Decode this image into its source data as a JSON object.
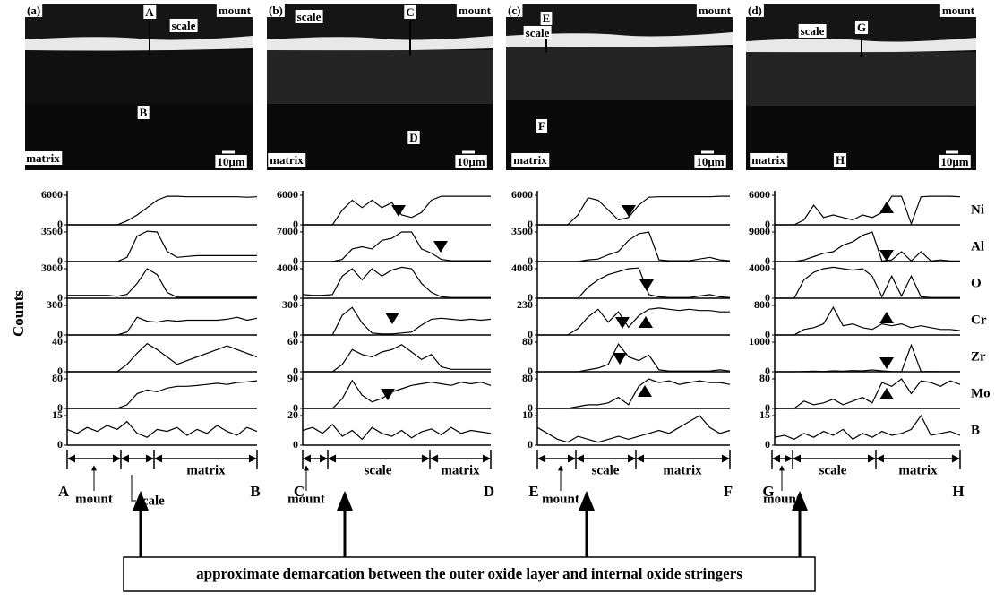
{
  "y_axis_label": "Counts",
  "elements": [
    "Ni",
    "Al",
    "O",
    "Cr",
    "Zr",
    "Mo",
    "B"
  ],
  "caption": "approximate demarcation between the outer oxide layer and internal oxide stringers",
  "panels": [
    {
      "label": "(a)",
      "micrograph": {
        "start": "A",
        "end": "B",
        "scale": "scale",
        "mount": "mount",
        "matrix": "matrix",
        "scale_bar": "10μm"
      },
      "line_scan": {
        "start": "A",
        "end": "B",
        "mount": "mount",
        "scale": "scale",
        "matrix": "matrix"
      },
      "profile": {
        "type": "line",
        "rows": [
          {
            "ylim": [
              0,
              6000
            ],
            "yticks": [
              0,
              6000
            ],
            "values": [
              0,
              0,
              0,
              0,
              0,
              0,
              800,
              2000,
              3500,
              5000,
              5800,
              5800,
              5700,
              5700,
              5700,
              5700,
              5700,
              5700,
              5600,
              5700
            ]
          },
          {
            "ylim": [
              0,
              3500
            ],
            "yticks": [
              0,
              3500
            ],
            "values": [
              0,
              0,
              0,
              0,
              0,
              0,
              500,
              3000,
              3600,
              3500,
              1200,
              500,
              600,
              700,
              700,
              700,
              700,
              700,
              700,
              700
            ]
          },
          {
            "ylim": [
              0,
              3000
            ],
            "yticks": [
              0,
              3000
            ],
            "values": [
              300,
              300,
              300,
              300,
              300,
              200,
              400,
              1500,
              3000,
              2400,
              600,
              100,
              100,
              100,
              100,
              100,
              100,
              100,
              100,
              100
            ]
          },
          {
            "ylim": [
              0,
              300
            ],
            "yticks": [
              0,
              300
            ],
            "values": [
              0,
              0,
              0,
              0,
              0,
              0,
              30,
              180,
              140,
              130,
              150,
              140,
              150,
              150,
              150,
              150,
              160,
              180,
              150,
              170
            ]
          },
          {
            "ylim": [
              0,
              40
            ],
            "yticks": [
              0,
              40
            ],
            "values": [
              0,
              0,
              0,
              0,
              0,
              0,
              10,
              25,
              38,
              30,
              20,
              10,
              15,
              20,
              25,
              30,
              35,
              30,
              25,
              20
            ]
          },
          {
            "ylim": [
              0,
              80
            ],
            "yticks": [
              0,
              80
            ],
            "values": [
              0,
              0,
              0,
              0,
              0,
              0,
              10,
              40,
              50,
              45,
              55,
              60,
              60,
              62,
              65,
              68,
              65,
              70,
              72,
              75
            ]
          },
          {
            "ylim": [
              0,
              15
            ],
            "yticks": [
              0,
              15
            ],
            "values": [
              8,
              6,
              9,
              7,
              10,
              8,
              12,
              6,
              4,
              8,
              7,
              9,
              5,
              8,
              6,
              10,
              7,
              5,
              9,
              7
            ]
          }
        ]
      }
    },
    {
      "label": "(b)",
      "micrograph": {
        "start": "C",
        "end": "D",
        "scale": "scale",
        "mount": "mount",
        "matrix": "matrix",
        "scale_bar": "10μm"
      },
      "line_scan": {
        "start": "C",
        "end": "D",
        "mount": "mount",
        "scale": "scale",
        "matrix": "matrix"
      },
      "profile": {
        "type": "line",
        "rows": [
          {
            "ylim": [
              0,
              6000
            ],
            "yticks": [
              0,
              6000
            ],
            "values": [
              0,
              0,
              0,
              0,
              3000,
              5000,
              3500,
              5000,
              3500,
              4500,
              2000,
              1500,
              2500,
              5000,
              5800,
              5800,
              5800,
              5800,
              5800,
              5800
            ]
          },
          {
            "ylim": [
              0,
              7000
            ],
            "yticks": [
              0,
              7000
            ],
            "values": [
              0,
              0,
              0,
              0,
              500,
              3000,
              3500,
              3000,
              5000,
              5500,
              7000,
              7000,
              3000,
              2000,
              500,
              200,
              200,
              200,
              200,
              200
            ]
          },
          {
            "ylim": [
              0,
              4000
            ],
            "yticks": [
              0,
              4000
            ],
            "values": [
              500,
              400,
              400,
              500,
              3000,
              4000,
              2500,
              4000,
              3000,
              3800,
              4200,
              4000,
              2000,
              800,
              200,
              100,
              100,
              100,
              100,
              100
            ]
          },
          {
            "ylim": [
              0,
              300
            ],
            "yticks": [
              0,
              300
            ],
            "values": [
              0,
              0,
              0,
              0,
              200,
              280,
              120,
              20,
              10,
              10,
              20,
              30,
              100,
              160,
              170,
              160,
              150,
              160,
              150,
              160
            ]
          },
          {
            "ylim": [
              0,
              60
            ],
            "yticks": [
              0,
              60
            ],
            "values": [
              0,
              0,
              0,
              0,
              15,
              45,
              35,
              30,
              40,
              45,
              55,
              40,
              25,
              35,
              10,
              5,
              5,
              5,
              5,
              5
            ]
          },
          {
            "ylim": [
              0,
              90
            ],
            "yticks": [
              0,
              90
            ],
            "values": [
              0,
              0,
              0,
              0,
              30,
              85,
              40,
              20,
              30,
              50,
              60,
              70,
              75,
              80,
              75,
              70,
              80,
              75,
              80,
              70
            ]
          },
          {
            "ylim": [
              0,
              20
            ],
            "yticks": [
              0,
              20
            ],
            "values": [
              10,
              12,
              8,
              14,
              6,
              10,
              4,
              12,
              8,
              6,
              10,
              5,
              9,
              11,
              7,
              12,
              8,
              10,
              9,
              8
            ]
          }
        ]
      }
    },
    {
      "label": "(c)",
      "micrograph": {
        "start": "E",
        "end": "F",
        "scale": "scale",
        "mount": "mount",
        "matrix": "matrix",
        "scale_bar": "10μm"
      },
      "line_scan": {
        "start": "E",
        "end": "F",
        "mount": "mount",
        "scale": "scale",
        "matrix": "matrix"
      },
      "profile": {
        "type": "line",
        "rows": [
          {
            "ylim": [
              0,
              6000
            ],
            "yticks": [
              0,
              6000
            ],
            "values": [
              0,
              0,
              0,
              0,
              2000,
              5500,
              5000,
              3000,
              1000,
              1500,
              4000,
              5600,
              5700,
              5700,
              5700,
              5700,
              5700,
              5700,
              5800,
              5800
            ]
          },
          {
            "ylim": [
              0,
              3500
            ],
            "yticks": [
              0,
              3500
            ],
            "values": [
              0,
              0,
              0,
              0,
              0,
              200,
              300,
              800,
              1200,
              2500,
              3300,
              3500,
              200,
              100,
              100,
              100,
              300,
              500,
              200,
              100
            ]
          },
          {
            "ylim": [
              0,
              4000
            ],
            "yticks": [
              0,
              4000
            ],
            "values": [
              0,
              0,
              0,
              0,
              0,
              1500,
              2500,
              3200,
              3600,
              4000,
              4100,
              500,
              200,
              100,
              100,
              100,
              300,
              500,
              200,
              100
            ]
          },
          {
            "ylim": [
              0,
              230
            ],
            "yticks": [
              0,
              230
            ],
            "values": [
              0,
              0,
              0,
              0,
              50,
              140,
              200,
              100,
              180,
              60,
              150,
              200,
              210,
              200,
              190,
              200,
              190,
              190,
              180,
              180
            ]
          },
          {
            "ylim": [
              0,
              80
            ],
            "yticks": [
              0,
              80
            ],
            "values": [
              0,
              0,
              0,
              0,
              0,
              5,
              10,
              20,
              75,
              40,
              30,
              45,
              5,
              2,
              2,
              2,
              2,
              2,
              5,
              2
            ]
          },
          {
            "ylim": [
              0,
              80
            ],
            "yticks": [
              0,
              80
            ],
            "values": [
              0,
              0,
              0,
              0,
              5,
              10,
              10,
              15,
              30,
              10,
              60,
              80,
              70,
              75,
              65,
              70,
              75,
              70,
              70,
              65
            ]
          },
          {
            "ylim": [
              0,
              10
            ],
            "yticks": [
              0,
              10
            ],
            "values": [
              6,
              4,
              2,
              1,
              3,
              2,
              1,
              2,
              3,
              2,
              3,
              4,
              5,
              4,
              6,
              8,
              10,
              6,
              4,
              5
            ]
          }
        ]
      }
    },
    {
      "label": "(d)",
      "micrograph": {
        "start": "G",
        "end": "H",
        "scale": "scale",
        "mount": "mount",
        "matrix": "matrix",
        "scale_bar": "10μm"
      },
      "line_scan": {
        "start": "G",
        "end": "H",
        "mount": "mount",
        "scale": "scale",
        "matrix": "matrix"
      },
      "profile": {
        "type": "line",
        "rows": [
          {
            "ylim": [
              0,
              6000
            ],
            "yticks": [
              0,
              6000
            ],
            "values": [
              0,
              0,
              0,
              1000,
              4000,
              1500,
              2000,
              1500,
              1000,
              2000,
              1500,
              2500,
              5800,
              5800,
              200,
              5700,
              5800,
              5800,
              5800,
              5700
            ]
          },
          {
            "ylim": [
              0,
              9000
            ],
            "yticks": [
              0,
              9000
            ],
            "values": [
              0,
              0,
              0,
              500,
              1500,
              2500,
              3000,
              5000,
              6000,
              8000,
              9000,
              200,
              500,
              3000,
              200,
              3000,
              200,
              500,
              200,
              200
            ]
          },
          {
            "ylim": [
              0,
              4000
            ],
            "yticks": [
              0,
              4000
            ],
            "values": [
              0,
              0,
              0,
              2500,
              3500,
              4000,
              4200,
              4000,
              3800,
              4000,
              3000,
              200,
              3000,
              300,
              3000,
              200,
              100,
              100,
              100,
              100
            ]
          },
          {
            "ylim": [
              0,
              800
            ],
            "yticks": [
              0,
              800
            ],
            "values": [
              0,
              0,
              0,
              150,
              200,
              300,
              750,
              250,
              300,
              200,
              150,
              300,
              250,
              300,
              200,
              250,
              200,
              150,
              150,
              120
            ]
          },
          {
            "ylim": [
              0,
              1000
            ],
            "yticks": [
              0,
              1000
            ],
            "values": [
              0,
              0,
              0,
              10,
              20,
              10,
              30,
              20,
              40,
              30,
              60,
              30,
              10,
              5,
              900,
              5,
              10,
              5,
              5,
              5
            ]
          },
          {
            "ylim": [
              0,
              80
            ],
            "yticks": [
              0,
              80
            ],
            "values": [
              0,
              0,
              0,
              20,
              10,
              15,
              25,
              10,
              20,
              30,
              15,
              70,
              60,
              80,
              40,
              75,
              70,
              60,
              75,
              65
            ]
          },
          {
            "ylim": [
              0,
              15
            ],
            "yticks": [
              0,
              15
            ],
            "values": [
              4,
              5,
              3,
              6,
              4,
              7,
              5,
              8,
              3,
              6,
              4,
              7,
              5,
              6,
              8,
              15,
              5,
              6,
              7,
              5
            ]
          }
        ]
      }
    }
  ]
}
